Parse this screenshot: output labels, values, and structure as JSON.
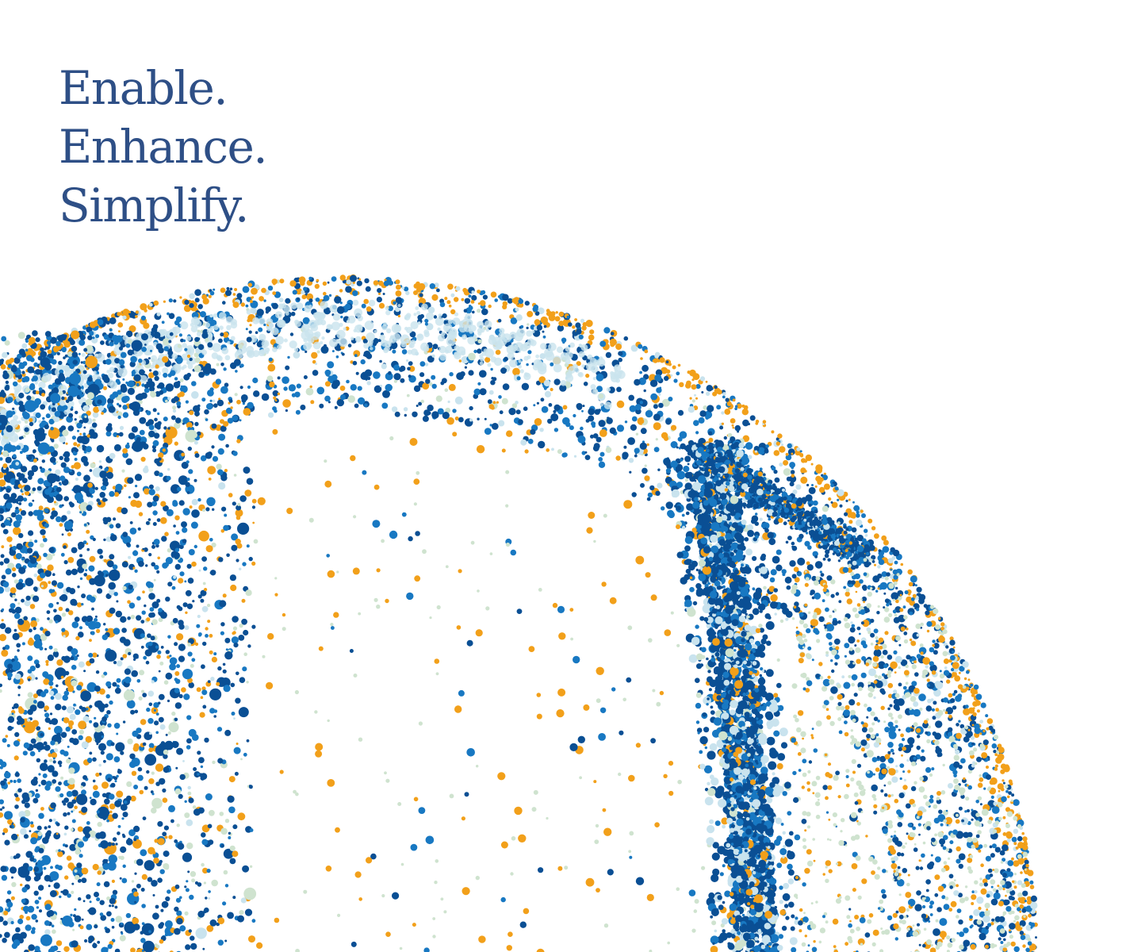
{
  "hero": {
    "tagline_lines": [
      "Enable.",
      "Enhance.",
      "Simplify."
    ],
    "text_color": "#2e4f86"
  },
  "illustration": {
    "name": "dotted-globe",
    "palette": {
      "dark_blue": "#0a4f94",
      "mid_blue": "#1878c2",
      "light_blue": "#c9e3ee",
      "orange": "#f2a01a",
      "pale_green": "#cfe3cf"
    }
  }
}
